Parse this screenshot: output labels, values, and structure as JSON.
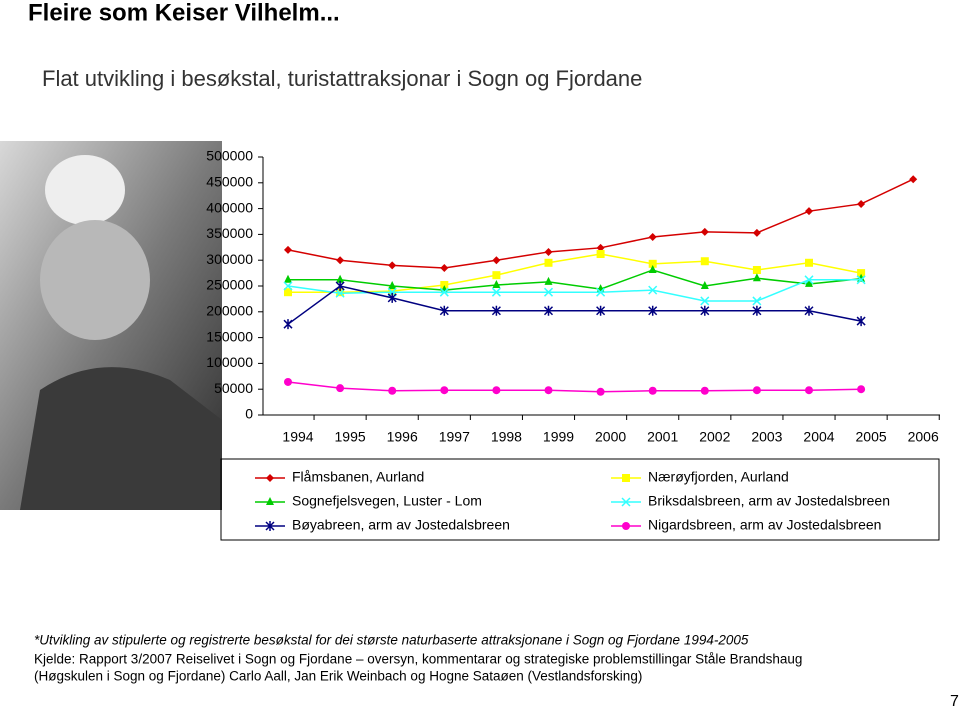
{
  "header": {
    "title": "Fleire som Keiser Vilhelm...",
    "subtitle": "Flat utvikling i besøkstal, turistattraksjonar i Sogn og Fjordane"
  },
  "chart_data": {
    "type": "line",
    "categories": [
      "1994",
      "1995",
      "1996",
      "1997",
      "1998",
      "1999",
      "2000",
      "2001",
      "2002",
      "2003",
      "2004",
      "2005",
      "2006"
    ],
    "ylim": [
      0,
      500000
    ],
    "yticks": [
      0,
      50000,
      100000,
      150000,
      200000,
      250000,
      300000,
      350000,
      400000,
      450000,
      500000
    ],
    "grid": false,
    "series": [
      {
        "name": "Flåmsbanen, Aurland",
        "color": "#d40000",
        "marker": "diamond",
        "values": [
          320000,
          300000,
          290000,
          285000,
          300000,
          316000,
          324000,
          345000,
          355000,
          353000,
          395000,
          409000,
          457000
        ]
      },
      {
        "name": "Nærøyfjorden, Aurland",
        "color": "#ffff00",
        "marker": "square",
        "values": [
          238000,
          238000,
          240000,
          252000,
          271000,
          295000,
          312000,
          293000,
          298000,
          281000,
          295000,
          275000,
          null
        ]
      },
      {
        "name": "Sognefjelsvegen, Luster - Lom",
        "color": "#00cc00",
        "marker": "triangle",
        "values": [
          262000,
          262000,
          250000,
          242000,
          252000,
          258000,
          244000,
          281000,
          250000,
          265000,
          254000,
          264000,
          null
        ]
      },
      {
        "name": "Briksdalsbreen, arm av Jostedalsbreen",
        "color": "#33ffff",
        "marker": "x",
        "values": [
          250000,
          236000,
          238000,
          238000,
          238000,
          238000,
          238000,
          242000,
          221000,
          221000,
          262000,
          262000,
          null
        ]
      },
      {
        "name": "Bøyabreen, arm av Jostedalsbreen",
        "color": "#000080",
        "marker": "star",
        "values": [
          176000,
          250000,
          227000,
          202000,
          202000,
          202000,
          202000,
          202000,
          202000,
          202000,
          202000,
          182000,
          null
        ]
      },
      {
        "name": "Nigardsbreen, arm av Jostedalsbreen",
        "color": "#ff00cc",
        "marker": "circle",
        "values": [
          64000,
          52000,
          47000,
          48000,
          48000,
          48000,
          45000,
          47000,
          47000,
          48000,
          48000,
          50000,
          null
        ]
      }
    ]
  },
  "footnotes": [
    "*Utvikling av stipulerte og registrerte besøkstal for dei største naturbaserte attraksjonane i Sogn og Fjordane 1994-2005",
    "Kjelde: Rapport 3/2007 Reiselivet i Sogn og Fjordane – oversyn, kommentarar og strategiske problemstillingar Ståle Brandshaug",
    "(Høgskulen i Sogn og Fjordane) Carlo Aall, Jan Erik Weinbach og Hogne Sataøen (Vestlandsforsking)"
  ],
  "page_number": "7"
}
